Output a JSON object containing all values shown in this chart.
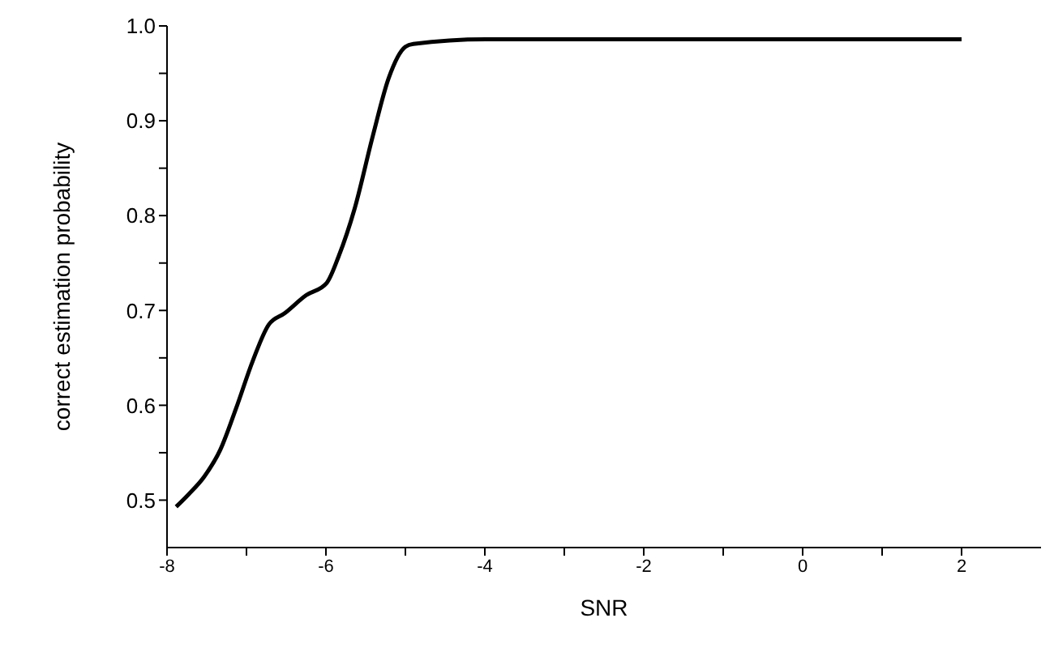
{
  "chart_data": {
    "type": "line",
    "xlabel": "SNR",
    "ylabel": "correct estimation probability",
    "x": [
      -7.885,
      -7.73,
      -7.53,
      -7.33,
      -7.13,
      -6.92,
      -6.72,
      -6.52,
      -6.25,
      -5.99,
      -5.84,
      -5.64,
      -5.41,
      -5.21,
      -5.0,
      -4.9,
      -3.99,
      -2,
      0,
      2
    ],
    "series": [
      {
        "color": "#000000",
        "values": [
          0.493,
          0.506,
          0.525,
          0.553,
          0.597,
          0.647,
          0.685,
          0.697,
          0.716,
          0.729,
          0.757,
          0.807,
          0.884,
          0.945,
          0.978,
          0.981,
          0.986,
          0.986,
          0.986,
          0.986
        ]
      }
    ],
    "xlim": [
      -8,
      3
    ],
    "xticks": [
      -8,
      {
        "value": -7,
        "label": null
      },
      -6,
      {
        "value": -5,
        "label": null
      },
      -4,
      {
        "value": -3,
        "label": null
      },
      -2,
      {
        "value": -1,
        "label": null
      },
      0,
      {
        "value": 1,
        "label": null
      },
      2
    ],
    "ylim": [
      0.45,
      1.0
    ],
    "yticks": [
      {
        "value": 0.5,
        "label": "0.5"
      },
      {
        "value": 0.55,
        "label": null
      },
      {
        "value": 0.6,
        "label": "0.6"
      },
      {
        "value": 0.65,
        "label": null
      },
      {
        "value": 0.7,
        "label": "0.7"
      },
      {
        "value": 0.75,
        "label": null
      },
      {
        "value": 0.8,
        "label": "0.8"
      },
      {
        "value": 0.85,
        "label": null
      },
      {
        "value": 0.9,
        "label": "0.9"
      },
      {
        "value": 0.95,
        "label": null
      },
      {
        "value": 1.0,
        "label": "1.0"
      }
    ],
    "grid": false,
    "legend": false,
    "marker": "none",
    "line_style": "solid"
  }
}
